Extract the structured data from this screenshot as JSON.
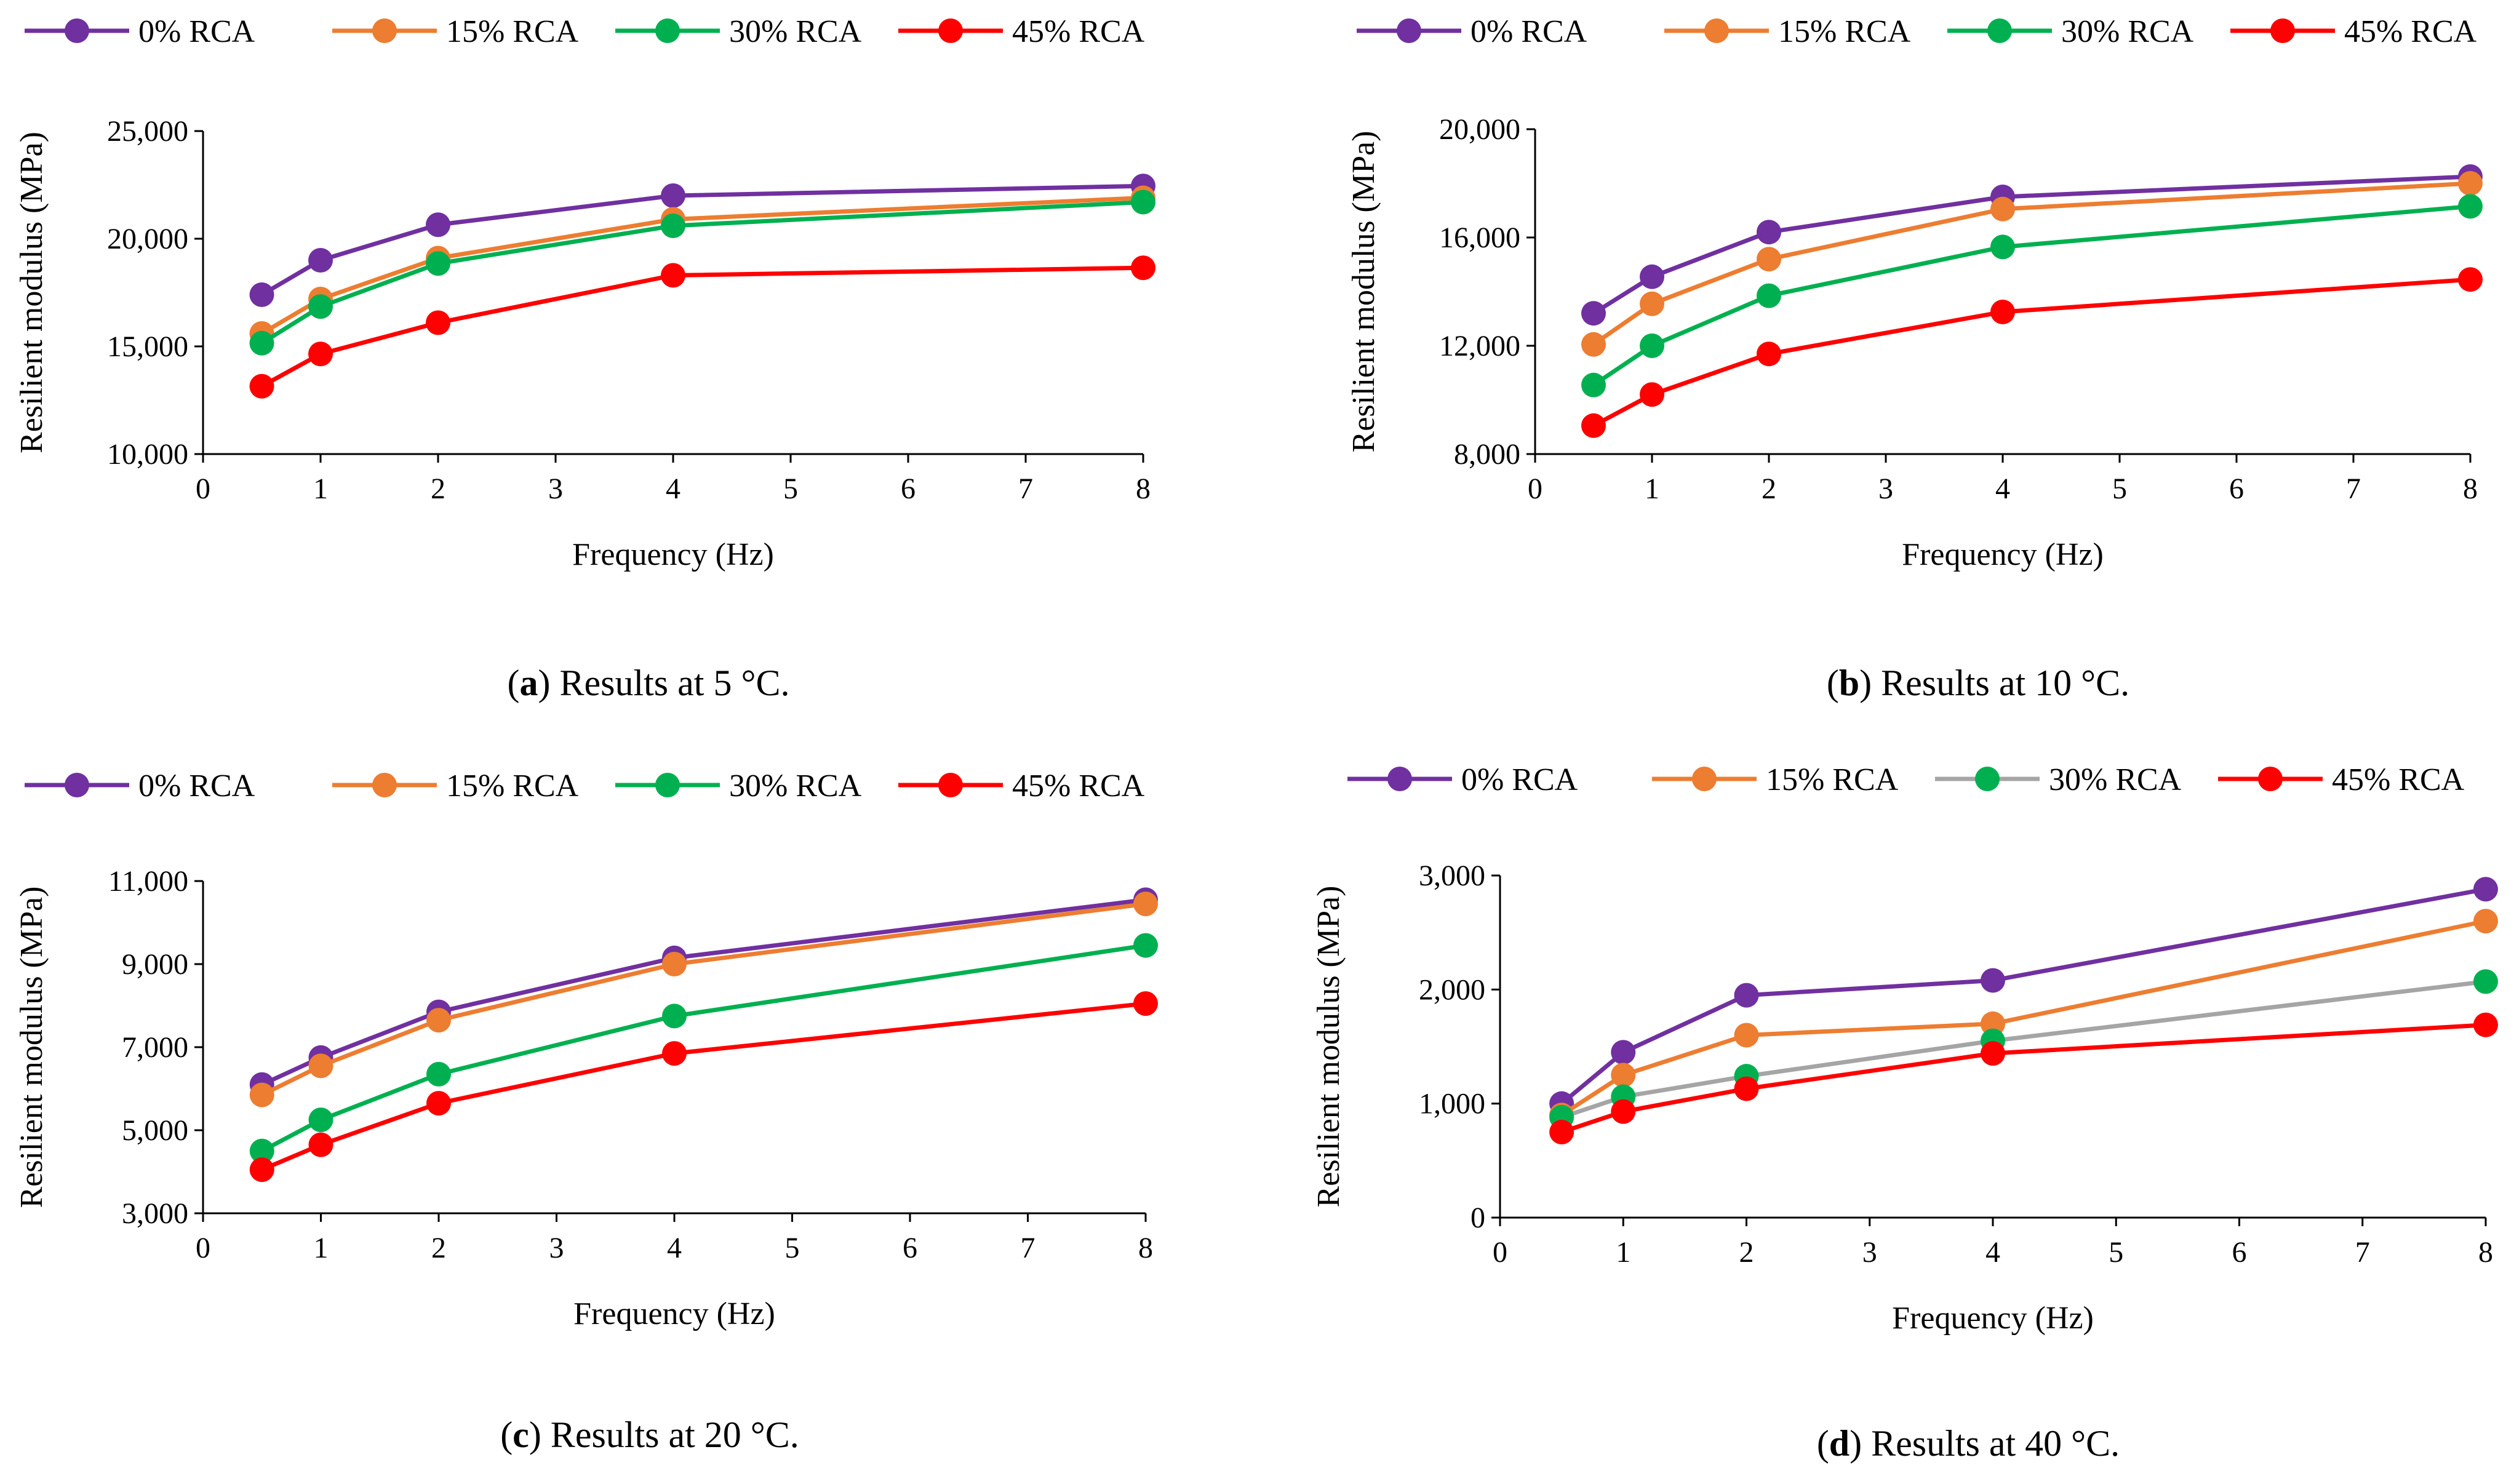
{
  "chart_data": [
    {
      "id": "a",
      "type": "line",
      "caption_letter": "a",
      "caption_text": "Results at 5 °C.",
      "xlabel": "Frequency (Hz)",
      "ylabel": "Resilient modulus (MPa)",
      "xlim": [
        0,
        8
      ],
      "ylim": [
        10000,
        25000
      ],
      "xticks": [
        0,
        1,
        2,
        3,
        4,
        5,
        6,
        7,
        8
      ],
      "yticks": [
        10000,
        15000,
        20000,
        25000
      ],
      "ytick_labels": [
        "10,000",
        "15,000",
        "20,000",
        "25,000"
      ],
      "x": [
        0.5,
        1,
        2,
        4,
        8
      ],
      "legend_position": "top",
      "series": [
        {
          "name": "0% RCA",
          "color": "#7030A0",
          "marker_color": "#7030A0",
          "values": [
            17400,
            19000,
            20650,
            22000,
            22450
          ]
        },
        {
          "name": "15% RCA",
          "color": "#ED7D31",
          "marker_color": "#ED7D31",
          "values": [
            15600,
            17200,
            19100,
            20900,
            21900
          ]
        },
        {
          "name": "30% RCA",
          "color": "#00B050",
          "marker_color": "#00B050",
          "values": [
            15150,
            16850,
            18850,
            20600,
            21700
          ]
        },
        {
          "name": "45% RCA",
          "color": "#FF0000",
          "marker_color": "#FF0000",
          "values": [
            13150,
            14650,
            16100,
            18300,
            18650
          ]
        }
      ]
    },
    {
      "id": "b",
      "type": "line",
      "caption_letter": "b",
      "caption_text": "Results at 10 °C.",
      "xlabel": "Frequency (Hz)",
      "ylabel": "Resilient modulus (MPa)",
      "xlim": [
        0,
        8
      ],
      "ylim": [
        8000,
        20000
      ],
      "xticks": [
        0,
        1,
        2,
        3,
        4,
        5,
        6,
        7,
        8
      ],
      "yticks": [
        8000,
        12000,
        16000,
        20000
      ],
      "ytick_labels": [
        "8,000",
        "12,000",
        "16,000",
        "20,000"
      ],
      "x": [
        0.5,
        1,
        2,
        4,
        8
      ],
      "legend_position": "top",
      "series": [
        {
          "name": "0% RCA",
          "color": "#7030A0",
          "marker_color": "#7030A0",
          "values": [
            13200,
            14550,
            16200,
            17500,
            18250
          ]
        },
        {
          "name": "15% RCA",
          "color": "#ED7D31",
          "marker_color": "#ED7D31",
          "values": [
            12050,
            13550,
            15200,
            17050,
            18000
          ]
        },
        {
          "name": "30% RCA",
          "color": "#00B050",
          "marker_color": "#00B050",
          "values": [
            10550,
            12000,
            13850,
            15650,
            17150
          ]
        },
        {
          "name": "45% RCA",
          "color": "#FF0000",
          "marker_color": "#FF0000",
          "values": [
            9050,
            10200,
            11700,
            13250,
            14450
          ]
        }
      ]
    },
    {
      "id": "c",
      "type": "line",
      "caption_letter": "c",
      "caption_text": "Results at 20 °C.",
      "xlabel": "Frequency (Hz)",
      "ylabel": "Resilient modulus (MPa)",
      "xlim": [
        0,
        8
      ],
      "ylim": [
        3000,
        11000
      ],
      "xticks": [
        0,
        1,
        2,
        3,
        4,
        5,
        6,
        7,
        8
      ],
      "yticks": [
        3000,
        5000,
        7000,
        9000,
        11000
      ],
      "ytick_labels": [
        "3,000",
        "5,000",
        "7,000",
        "9,000",
        "11,000"
      ],
      "x": [
        0.5,
        1,
        2,
        4,
        8
      ],
      "legend_position": "top",
      "series": [
        {
          "name": "0% RCA",
          "color": "#7030A0",
          "marker_color": "#7030A0",
          "values": [
            6100,
            6750,
            7850,
            9150,
            10550
          ]
        },
        {
          "name": "15% RCA",
          "color": "#ED7D31",
          "marker_color": "#ED7D31",
          "values": [
            5850,
            6550,
            7650,
            9000,
            10450
          ]
        },
        {
          "name": "30% RCA",
          "color": "#00B050",
          "marker_color": "#00B050",
          "values": [
            4500,
            5250,
            6350,
            7750,
            9450
          ]
        },
        {
          "name": "45% RCA",
          "color": "#FF0000",
          "marker_color": "#FF0000",
          "values": [
            4050,
            4650,
            5650,
            6850,
            8050
          ]
        }
      ]
    },
    {
      "id": "d",
      "type": "line",
      "caption_letter": "d",
      "caption_text": "Results at 40 °C.",
      "xlabel": "Frequency (Hz)",
      "ylabel": "Resilient modulus (MPa)",
      "xlim": [
        0,
        8
      ],
      "ylim": [
        0,
        3000
      ],
      "xticks": [
        0,
        1,
        2,
        3,
        4,
        5,
        6,
        7,
        8
      ],
      "yticks": [
        0,
        1000,
        2000,
        3000
      ],
      "ytick_labels": [
        "0",
        "1,000",
        "2,000",
        "3,000"
      ],
      "x": [
        0.5,
        1,
        2,
        4,
        8
      ],
      "legend_position": "top",
      "series": [
        {
          "name": "0% RCA",
          "color": "#7030A0",
          "marker_color": "#7030A0",
          "values": [
            1000,
            1450,
            1950,
            2080,
            2880
          ]
        },
        {
          "name": "15% RCA",
          "color": "#ED7D31",
          "marker_color": "#ED7D31",
          "values": [
            900,
            1250,
            1600,
            1700,
            2600
          ]
        },
        {
          "name": "30% RCA",
          "color": "#A5A5A5",
          "marker_color": "#00B050",
          "values": [
            880,
            1060,
            1240,
            1550,
            2070
          ]
        },
        {
          "name": "45% RCA",
          "color": "#FF0000",
          "marker_color": "#FF0000",
          "values": [
            750,
            930,
            1130,
            1440,
            1690
          ]
        }
      ]
    }
  ]
}
